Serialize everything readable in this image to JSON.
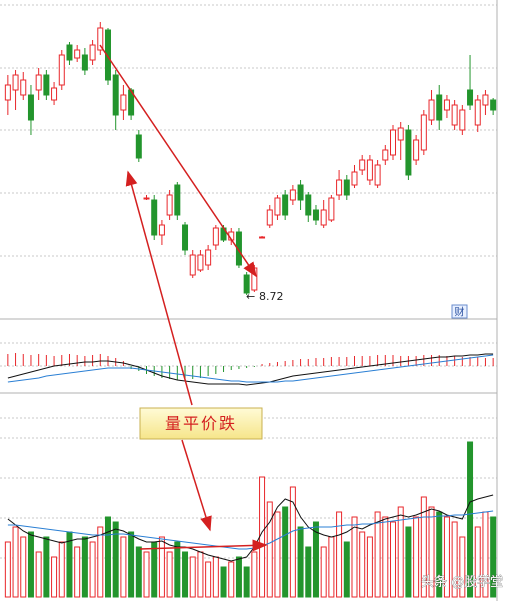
{
  "chart_data": [
    {
      "type": "candlestick",
      "open": [
        10.67,
        10.77,
        10.72,
        10.72,
        10.77,
        10.92,
        10.67,
        10.82,
        11.22,
        11.09,
        11.12,
        11.07,
        11.17,
        11.37,
        10.92,
        10.57,
        10.77,
        10.32,
        9.69,
        9.67,
        9.32,
        9.52,
        9.82,
        9.42,
        8.92,
        8.97,
        9.02,
        9.22,
        9.39,
        9.27,
        9.35,
        8.92,
        8.77,
        9.3,
        9.42,
        9.52,
        9.72,
        9.67,
        9.82,
        9.72,
        9.57,
        9.42,
        9.47,
        9.72,
        9.87,
        9.82,
        9.97,
        9.87,
        9.82,
        10.07,
        10.12,
        10.27,
        10.37,
        10.07,
        10.17,
        10.47,
        10.72,
        10.57,
        10.42,
        10.37,
        10.77,
        10.42,
        10.62,
        10.67
      ],
      "high": [
        10.92,
        10.97,
        10.95,
        10.82,
        10.99,
        10.97,
        10.85,
        11.17,
        11.25,
        11.22,
        11.19,
        11.27,
        11.45,
        11.39,
        10.97,
        10.82,
        10.79,
        10.37,
        9.72,
        9.72,
        9.47,
        9.77,
        9.85,
        9.45,
        9.17,
        9.17,
        9.22,
        9.42,
        9.42,
        9.39,
        9.39,
        8.95,
        9.02,
        9.31,
        9.62,
        9.72,
        9.77,
        9.82,
        9.87,
        9.75,
        9.62,
        9.67,
        9.72,
        9.97,
        9.92,
        10.02,
        10.12,
        10.12,
        10.07,
        10.22,
        10.42,
        10.45,
        10.42,
        10.32,
        10.57,
        10.77,
        10.82,
        10.72,
        10.67,
        10.62,
        11.12,
        10.72,
        10.77,
        10.69
      ],
      "low": [
        10.52,
        10.57,
        10.67,
        10.32,
        10.67,
        10.67,
        10.62,
        10.77,
        11.02,
        11.05,
        10.92,
        11.02,
        11.12,
        10.82,
        10.37,
        10.47,
        10.47,
        10.05,
        9.67,
        9.27,
        9.22,
        9.47,
        9.47,
        9.12,
        8.89,
        8.95,
        8.97,
        9.17,
        9.25,
        9.22,
        8.99,
        8.72,
        8.75,
        9.29,
        9.39,
        9.47,
        9.47,
        9.62,
        9.57,
        9.45,
        9.42,
        9.39,
        9.45,
        9.67,
        9.67,
        9.79,
        9.92,
        9.82,
        9.79,
        10.02,
        10.07,
        10.07,
        9.87,
        10.02,
        10.12,
        10.42,
        10.37,
        10.49,
        10.37,
        10.32,
        10.57,
        10.35,
        10.52,
        10.52
      ],
      "close": [
        10.82,
        10.92,
        10.87,
        10.47,
        10.92,
        10.72,
        10.79,
        11.12,
        11.07,
        11.17,
        10.97,
        11.22,
        11.39,
        10.87,
        10.52,
        10.72,
        10.52,
        10.09,
        9.69,
        9.32,
        9.42,
        9.72,
        9.52,
        9.17,
        9.12,
        9.12,
        9.17,
        9.39,
        9.27,
        9.35,
        9.02,
        8.74,
        8.99,
        9.3,
        9.57,
        9.69,
        9.52,
        9.77,
        9.67,
        9.52,
        9.47,
        9.57,
        9.69,
        9.87,
        9.72,
        9.95,
        10.07,
        10.07,
        10.02,
        10.17,
        10.37,
        10.39,
        9.92,
        10.27,
        10.52,
        10.67,
        10.47,
        10.67,
        10.62,
        10.57,
        10.62,
        10.67,
        10.72,
        10.57
      ],
      "ylim": [
        8.5,
        11.6
      ],
      "up_color": "#e8262a",
      "down_color": "#23952d"
    },
    {
      "type": "macd",
      "color_up": "#e8262a",
      "color_down": "#23952d",
      "values": [
        12,
        13,
        12,
        11,
        12,
        11,
        10,
        11,
        12,
        11,
        10,
        11,
        12,
        10,
        8,
        5,
        -3,
        -5,
        -8,
        -10,
        -12,
        -13,
        -14,
        -14,
        -13,
        -12,
        -10,
        -8,
        -6,
        -4,
        -3,
        -2,
        -1,
        2,
        3,
        4,
        5,
        6,
        7,
        7,
        8,
        8,
        9,
        9,
        9,
        10,
        10,
        10,
        11,
        11,
        11,
        10,
        10,
        10,
        11,
        11,
        11,
        10,
        10,
        9,
        9,
        9,
        8,
        8
      ],
      "series": [
        {
          "color": "#111111",
          "values": [
            -12,
            -10,
            -8,
            -6,
            -4,
            -2,
            0,
            1,
            2,
            3,
            4,
            4,
            5,
            5,
            4,
            3,
            1,
            -1,
            -4,
            -7,
            -10,
            -12,
            -14,
            -15,
            -16,
            -17,
            -18,
            -18,
            -18,
            -18,
            -18,
            -19,
            -18,
            -17,
            -16,
            -14,
            -12,
            -10,
            -9,
            -8,
            -7,
            -6,
            -5,
            -4,
            -3,
            -2,
            -1,
            0,
            1,
            2,
            3,
            4,
            5,
            6,
            7,
            8,
            9,
            9,
            10,
            10,
            11,
            11,
            12,
            12
          ]
        },
        {
          "color": "#2a7fd4",
          "values": [
            -16,
            -15,
            -14,
            -13,
            -12,
            -10,
            -9,
            -8,
            -7,
            -6,
            -5,
            -4,
            -3,
            -2,
            -2,
            -2,
            -2,
            -3,
            -4,
            -5,
            -6,
            -7,
            -8,
            -9,
            -10,
            -11,
            -12,
            -13,
            -14,
            -15,
            -15,
            -16,
            -16,
            -16,
            -16,
            -16,
            -15,
            -15,
            -14,
            -13,
            -12,
            -11,
            -10,
            -9,
            -8,
            -7,
            -6,
            -5,
            -4,
            -3,
            -2,
            -1,
            0,
            1,
            2,
            3,
            4,
            5,
            6,
            7,
            8,
            9,
            10,
            11
          ]
        }
      ],
      "ylim": [
        -25,
        25
      ]
    },
    {
      "type": "volume",
      "values": [
        55,
        70,
        60,
        65,
        45,
        60,
        40,
        55,
        65,
        50,
        60,
        55,
        70,
        80,
        75,
        60,
        65,
        50,
        45,
        55,
        60,
        45,
        55,
        45,
        40,
        45,
        35,
        40,
        30,
        35,
        40,
        30,
        45,
        120,
        95,
        85,
        90,
        110,
        70,
        50,
        75,
        50,
        60,
        85,
        55,
        80,
        65,
        60,
        85,
        80,
        75,
        90,
        70,
        80,
        100,
        90,
        85,
        80,
        75,
        60,
        155,
        70,
        85,
        80
      ],
      "series": [
        {
          "color": "#111111",
          "values": [
            78,
            72,
            66,
            62,
            60,
            58,
            56,
            54,
            56,
            58,
            58,
            60,
            62,
            65,
            68,
            66,
            62,
            58,
            55,
            55,
            56,
            52,
            50,
            50,
            48,
            45,
            42,
            40,
            38,
            36,
            38,
            40,
            50,
            65,
            75,
            90,
            98,
            95,
            80,
            70,
            65,
            62,
            60,
            62,
            65,
            70,
            68,
            72,
            75,
            78,
            80,
            82,
            80,
            82,
            85,
            88,
            86,
            82,
            80,
            78,
            95,
            98,
            100,
            102
          ]
        },
        {
          "color": "#2a7fd4",
          "values": [
            72,
            72,
            71,
            70,
            69,
            68,
            67,
            66,
            65,
            64,
            63,
            62,
            62,
            62,
            63,
            63,
            62,
            61,
            60,
            59,
            58,
            57,
            56,
            55,
            54,
            53,
            52,
            51,
            50,
            49,
            48,
            48,
            49,
            51,
            54,
            58,
            62,
            66,
            68,
            69,
            70,
            70,
            70,
            71,
            72,
            72,
            73,
            73,
            74,
            75,
            76,
            77,
            78,
            79,
            80,
            80,
            81,
            81,
            82,
            82,
            83,
            84,
            85,
            86
          ]
        }
      ],
      "ylim": [
        0,
        175
      ]
    }
  ],
  "annotation": "量平价跌",
  "badge": "财",
  "watermark": "头条 @股学堂"
}
